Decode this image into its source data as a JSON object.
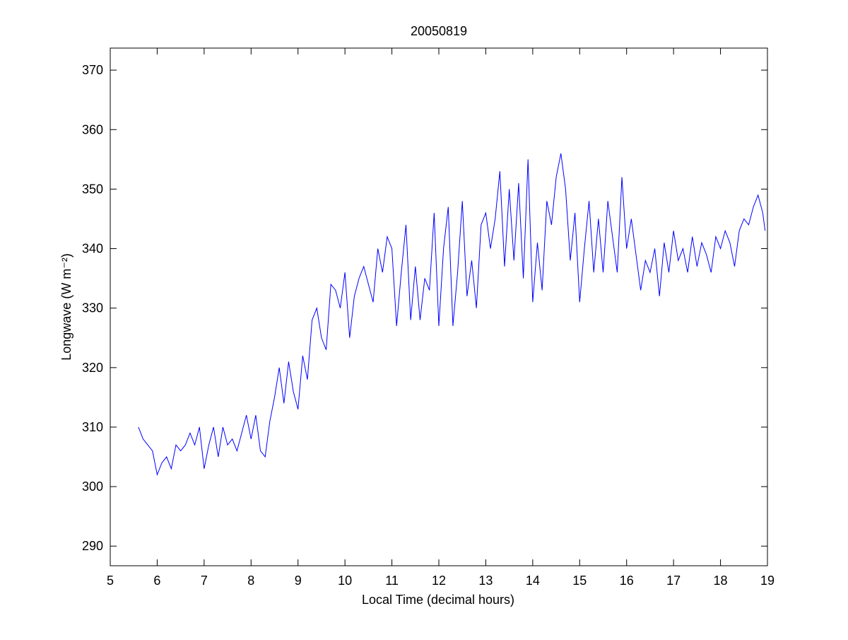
{
  "chart_data": {
    "type": "line",
    "title": "20050819",
    "x_label": "Local Time (decimal hours)",
    "y_label": "Longwave (W m⁻²)",
    "x": [
      5.6,
      5.7,
      5.8,
      5.9,
      6.0,
      6.1,
      6.2,
      6.3,
      6.4,
      6.5,
      6.6,
      6.7,
      6.8,
      6.9,
      7.0,
      7.1,
      7.2,
      7.3,
      7.4,
      7.5,
      7.6,
      7.7,
      7.8,
      7.9,
      8.0,
      8.1,
      8.2,
      8.3,
      8.4,
      8.5,
      8.6,
      8.7,
      8.8,
      8.9,
      9.0,
      9.1,
      9.2,
      9.3,
      9.4,
      9.5,
      9.6,
      9.7,
      9.8,
      9.9,
      10.0,
      10.1,
      10.2,
      10.3,
      10.4,
      10.5,
      10.6,
      10.7,
      10.8,
      10.9,
      11.0,
      11.1,
      11.2,
      11.3,
      11.4,
      11.5,
      11.6,
      11.7,
      11.8,
      11.9,
      12.0,
      12.1,
      12.2,
      12.3,
      12.4,
      12.5,
      12.6,
      12.7,
      12.8,
      12.9,
      13.0,
      13.1,
      13.2,
      13.3,
      13.4,
      13.5,
      13.6,
      13.7,
      13.8,
      13.9,
      14.0,
      14.1,
      14.2,
      14.3,
      14.4,
      14.5,
      14.6,
      14.7,
      14.8,
      14.9,
      15.0,
      15.1,
      15.2,
      15.3,
      15.4,
      15.5,
      15.6,
      15.7,
      15.8,
      15.9,
      16.0,
      16.1,
      16.2,
      16.3,
      16.4,
      16.5,
      16.6,
      16.7,
      16.8,
      16.9,
      17.0,
      17.1,
      17.2,
      17.3,
      17.4,
      17.5,
      17.6,
      17.7,
      17.8,
      17.9,
      18.0,
      18.1,
      18.2,
      18.3,
      18.4,
      18.5,
      18.6,
      18.7,
      18.8,
      18.9,
      18.95
    ],
    "series": [
      {
        "color": "#0000ff",
        "values": [
          310,
          308,
          307,
          306,
          302,
          304,
          305,
          303,
          307,
          306,
          307,
          309,
          307,
          310,
          303,
          307,
          310,
          305,
          310,
          307,
          308,
          306,
          309,
          312,
          308,
          312,
          306,
          305,
          311,
          315,
          320,
          314,
          321,
          316,
          313,
          322,
          318,
          328,
          330,
          325,
          323,
          334,
          333,
          330,
          336,
          325,
          332,
          335,
          337,
          334,
          331,
          340,
          336,
          342,
          340,
          327,
          336,
          344,
          328,
          337,
          328,
          335,
          333,
          346,
          327,
          340,
          347,
          327,
          336,
          348,
          332,
          338,
          330,
          344,
          346,
          340,
          345,
          353,
          337,
          350,
          338,
          351,
          335,
          355,
          331,
          341,
          333,
          348,
          344,
          352,
          356,
          350,
          338,
          346,
          331,
          340,
          348,
          336,
          345,
          336,
          348,
          342,
          336,
          352,
          340,
          345,
          339,
          333,
          338,
          336,
          340,
          332,
          341,
          336,
          343,
          338,
          340,
          336,
          342,
          337,
          341,
          339,
          336,
          342,
          340,
          343,
          341,
          337,
          343,
          345,
          344,
          347,
          349,
          346,
          343
        ]
      }
    ],
    "xlim": [
      5,
      19
    ],
    "ylim": [
      286.7,
      373.7
    ],
    "xticks": [
      5,
      6,
      7,
      8,
      9,
      10,
      11,
      12,
      13,
      14,
      15,
      16,
      17,
      18,
      19
    ],
    "yticks": [
      290,
      300,
      310,
      320,
      330,
      340,
      350,
      360,
      370
    ]
  }
}
